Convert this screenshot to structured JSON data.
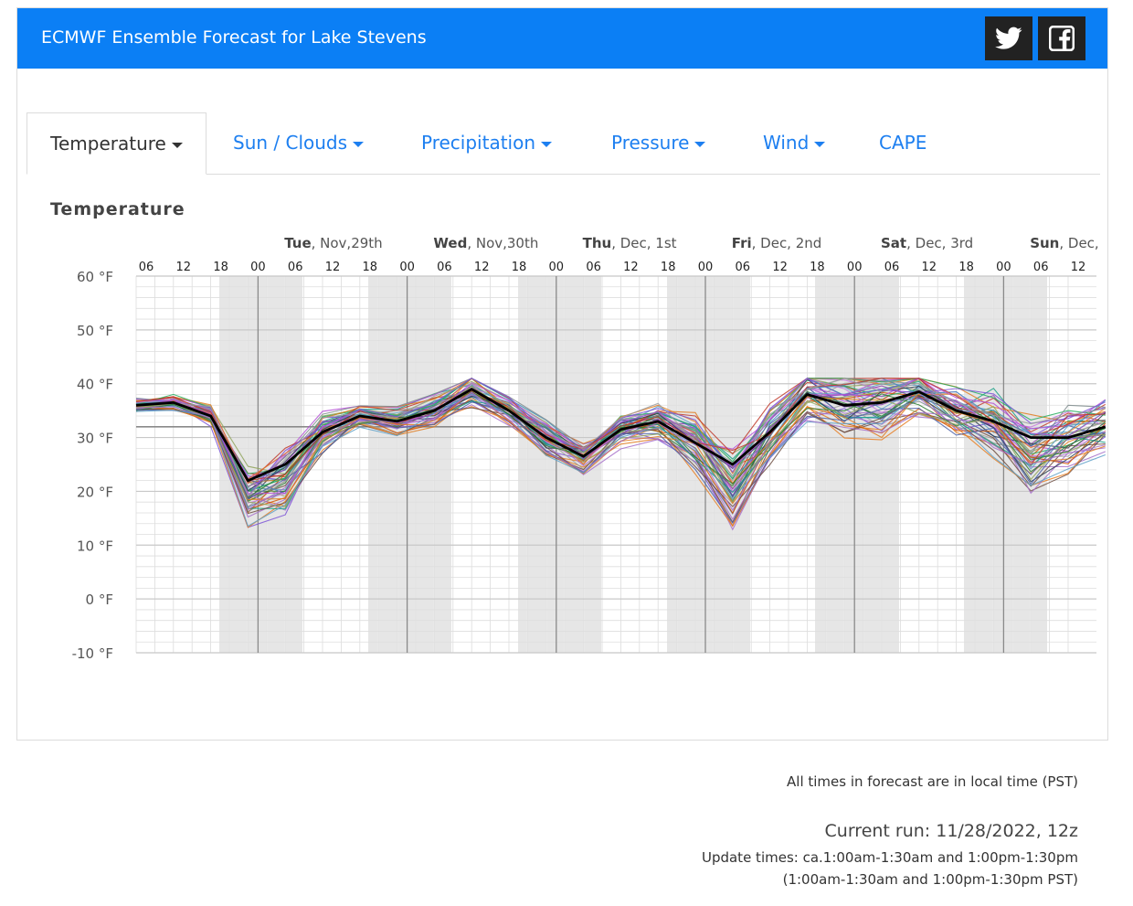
{
  "header": {
    "title": "ECMWF Ensemble Forecast for Lake Stevens",
    "twitter_icon": "twitter-icon",
    "facebook_icon": "facebook-icon",
    "bg_color": "#0b7ff5"
  },
  "tabs": [
    {
      "label": "Temperature",
      "active": true,
      "dropdown": true
    },
    {
      "label": "Sun / Clouds",
      "active": false,
      "dropdown": true
    },
    {
      "label": "Precipitation",
      "active": false,
      "dropdown": true
    },
    {
      "label": "Pressure",
      "active": false,
      "dropdown": true
    },
    {
      "label": "Wind",
      "active": false,
      "dropdown": true
    },
    {
      "label": "CAPE",
      "active": false,
      "dropdown": false
    }
  ],
  "chart_data": {
    "type": "line",
    "title": "Temperature",
    "ylabel_unit": "°F",
    "ylim": [
      -10,
      60
    ],
    "y_ticks": [
      "60 °F",
      "50 °F",
      "40 °F",
      "30 °F",
      "20 °F",
      "10 °F",
      "0 °F",
      "-10 °F"
    ],
    "hour_ticks": [
      "06",
      "12",
      "18",
      "00",
      "06",
      "12",
      "18",
      "00",
      "06",
      "12",
      "18",
      "00",
      "06",
      "12",
      "18",
      "00",
      "06",
      "12",
      "18",
      "00",
      "06",
      "12",
      "18",
      "00",
      "06",
      "12"
    ],
    "day_labels": [
      {
        "day": "Tue",
        "date": ", Nov,29th"
      },
      {
        "day": "Wed",
        "date": ", Nov,30th"
      },
      {
        "day": "Thu",
        "date": ", Dec, 1st"
      },
      {
        "day": "Fri",
        "date": ", Dec, 2nd"
      },
      {
        "day": "Sat",
        "date": ", Dec, 3rd"
      },
      {
        "day": "Sun",
        "date": ", Dec,"
      }
    ],
    "grid": true,
    "night_shading": true,
    "reference_line_value": 32,
    "control_run": {
      "name": "control",
      "color": "#000000",
      "values": [
        36,
        36.5,
        34,
        22,
        25,
        31,
        34,
        33,
        35,
        39,
        35,
        30,
        26.5,
        31.5,
        33,
        29,
        25,
        31,
        38,
        36,
        36.5,
        38.5,
        35,
        33,
        30,
        30,
        32
      ]
    },
    "ensemble_members": 50,
    "ensemble_colors": [
      "#7b52d6",
      "#b44fd6",
      "#e07b1f",
      "#2e7d32",
      "#4a5fa8",
      "#8fa35a",
      "#c0392b",
      "#5da0c8",
      "#9e9e9e",
      "#a66fc9",
      "#3c8dbc",
      "#d35400",
      "#16a085",
      "#6d4c41",
      "#8e44ad",
      "#27ae60",
      "#e67e22",
      "#2c3e50",
      "#7f8c8d",
      "#c678dd"
    ]
  },
  "footer": {
    "timezone_note": "All times in forecast are in local time (PST)",
    "current_run": "Current run: 11/28/2022, 12z",
    "update_times": "Update times: ca.1:00am-1:30am and 1:00pm-1:30pm",
    "update_times_pst": "(1:00am-1:30am and 1:00pm-1:30pm PST)"
  }
}
